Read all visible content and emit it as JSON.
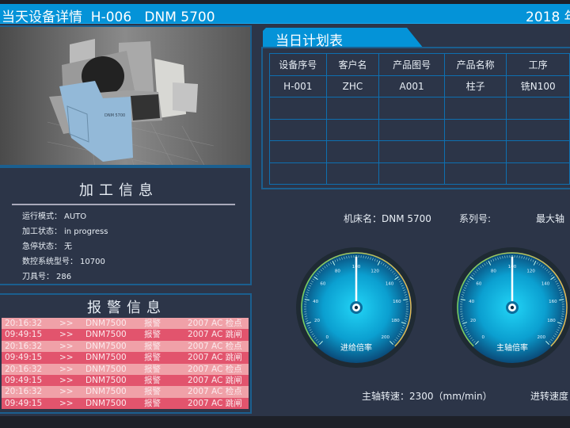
{
  "header": {
    "title": "当天设备详情  H-006   DNM 5700",
    "date": "2018 年"
  },
  "machine_image": {
    "label": "DNM 5700"
  },
  "processing_info": {
    "title": "加工信息",
    "rows": [
      {
        "label": "运行模式：",
        "value": "AUTO"
      },
      {
        "label": "加工状态：",
        "value": "in progress"
      },
      {
        "label": "急停状态：",
        "value": "无"
      },
      {
        "label": "数控系统型号：",
        "value": "10700"
      },
      {
        "label": "刀具号：",
        "value": "286"
      }
    ]
  },
  "alarm_info": {
    "title": "报警信息",
    "colors": {
      "light": "#f0a1a8",
      "dark": "#e2546d"
    },
    "rows": [
      {
        "time": "20:16:32",
        "sep": ">>",
        "machine": "DNM7500",
        "type": "报警",
        "code": "2007  AC 检点"
      },
      {
        "time": "09:49:15",
        "sep": ">>",
        "machine": "DNM7500",
        "type": "报警",
        "code": "2007  AC 跳闸"
      },
      {
        "time": "20:16:32",
        "sep": ">>",
        "machine": "DNM7500",
        "type": "报警",
        "code": "2007  AC 检点"
      },
      {
        "time": "09:49:15",
        "sep": ">>",
        "machine": "DNM7500",
        "type": "报警",
        "code": "2007  AC 跳闸"
      },
      {
        "time": "20:16:32",
        "sep": ">>",
        "machine": "DNM7500",
        "type": "报警",
        "code": "2007  AC 检点"
      },
      {
        "time": "09:49:15",
        "sep": ">>",
        "machine": "DNM7500",
        "type": "报警",
        "code": "2007  AC 跳闸"
      },
      {
        "time": "20:16:32",
        "sep": ">>",
        "machine": "DNM7500",
        "type": "报警",
        "code": "2007  AC 检点"
      },
      {
        "time": "09:49:15",
        "sep": ">>",
        "machine": "DNM7500",
        "type": "报警",
        "code": "2007  AC 跳闸"
      }
    ]
  },
  "plan": {
    "tab": "当日计划表",
    "columns": [
      "设备序号",
      "客户名",
      "产品图号",
      "产品名称",
      "工序"
    ],
    "rows": [
      [
        "H-001",
        "ZHC",
        "A001",
        "柱子",
        "铣N100"
      ],
      [
        "",
        "",
        "",
        "",
        ""
      ],
      [
        "",
        "",
        "",
        "",
        ""
      ],
      [
        "",
        "",
        "",
        "",
        ""
      ],
      [
        "",
        "",
        "",
        "",
        ""
      ]
    ]
  },
  "machine_info": {
    "name_label": "机床名：",
    "name_value": "DNM 5700",
    "serial_label": "系列号:",
    "serial_value": "",
    "max_axis_label": "最大轴"
  },
  "gauges": [
    {
      "label": "进给倍率",
      "value": 100,
      "min": 0,
      "max": 200,
      "ticks": [
        0,
        20,
        40,
        60,
        80,
        100,
        120,
        140,
        160,
        180,
        200
      ]
    },
    {
      "label": "主轴倍率",
      "value": 100,
      "min": 0,
      "max": 200,
      "ticks": [
        0,
        20,
        40,
        60,
        80,
        100,
        120,
        140,
        160,
        180,
        200
      ]
    }
  ],
  "spindle_speed": "主轴转速：2300（mm/min）",
  "feed_speed": "进转速度"
}
